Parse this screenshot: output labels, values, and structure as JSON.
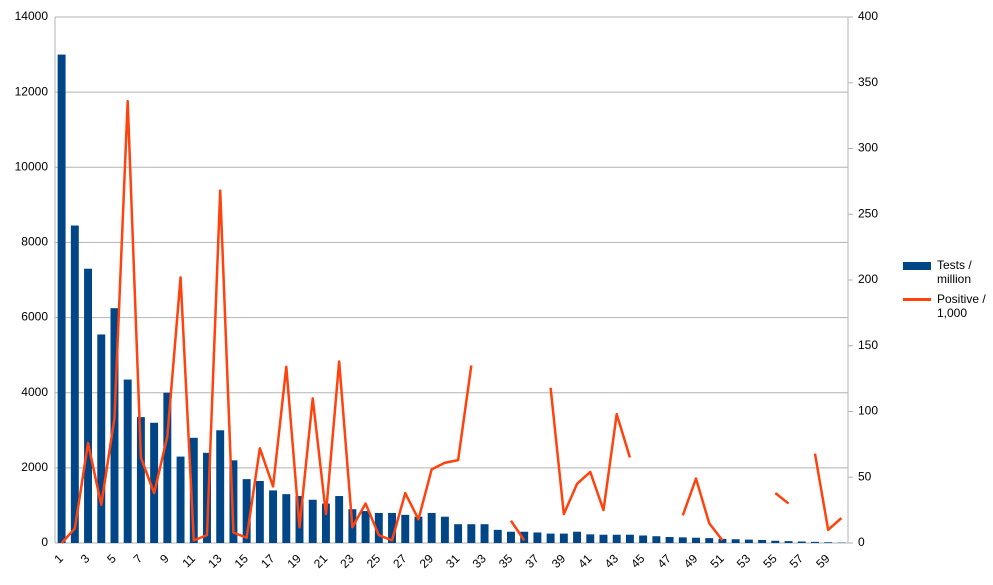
{
  "chart_data": {
    "type": "bar-line",
    "categories": [
      "1",
      null,
      "3",
      null,
      "5",
      null,
      "7",
      null,
      "9",
      null,
      "11",
      null,
      "13",
      null,
      "15",
      null,
      "17",
      null,
      "19",
      null,
      "21",
      null,
      "23",
      null,
      "25",
      null,
      "27",
      null,
      "29",
      null,
      "31",
      null,
      "33",
      null,
      "35",
      null,
      "37",
      null,
      "39",
      null,
      "41",
      null,
      "43",
      null,
      "45",
      null,
      "47",
      null,
      "49",
      null,
      "51",
      null,
      "53",
      null,
      "55",
      null,
      "57",
      null,
      "59",
      null
    ],
    "series": [
      {
        "name": "Tests / million",
        "type": "bar",
        "color": "#004586",
        "axis": "y",
        "values": [
          13000,
          8450,
          7300,
          5550,
          6250,
          4350,
          3350,
          3200,
          4000,
          2300,
          2800,
          2400,
          3000,
          2200,
          1700,
          1650,
          1400,
          1300,
          1250,
          1150,
          1050,
          1250,
          900,
          850,
          800,
          800,
          750,
          700,
          800,
          700,
          500,
          500,
          500,
          350,
          300,
          300,
          280,
          250,
          250,
          300,
          230,
          220,
          220,
          220,
          200,
          180,
          160,
          150,
          140,
          130,
          110,
          100,
          90,
          80,
          60,
          50,
          40,
          30,
          20,
          10
        ]
      },
      {
        "name": "Positive / 1,000",
        "type": "line",
        "color": "#ff420e",
        "axis": "y2",
        "values": [
          0,
          11,
          76,
          29,
          95,
          336,
          65,
          38,
          81,
          202,
          2,
          6,
          268,
          8,
          4,
          72,
          43,
          134,
          12,
          110,
          22,
          138,
          12,
          30,
          6,
          2,
          38,
          18,
          56,
          61,
          63,
          135,
          null,
          null,
          17,
          2,
          null,
          118,
          22,
          45,
          54,
          25,
          98,
          65,
          null,
          null,
          null,
          21,
          49,
          15,
          2,
          null,
          null,
          null,
          38,
          30,
          null,
          68,
          10,
          19
        ]
      }
    ],
    "ylim": [
      0,
      14000
    ],
    "yticks": [
      0,
      2000,
      4000,
      6000,
      8000,
      10000,
      12000,
      14000
    ],
    "y2lim": [
      0,
      400
    ],
    "y2ticks": [
      0,
      50,
      100,
      150,
      200,
      250,
      300,
      350,
      400
    ],
    "grid": true,
    "legend": "right"
  }
}
